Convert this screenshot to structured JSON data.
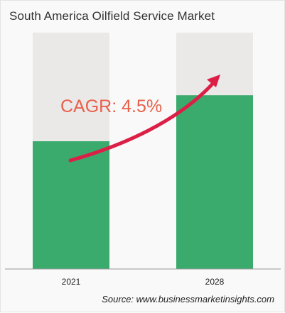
{
  "chart_data": {
    "type": "bar",
    "title": "South America Oilfield Service Market",
    "categories": [
      "2021",
      "2028"
    ],
    "values": [
      1,
      1.36
    ],
    "annotation": "CAGR: 4.5%",
    "source": "Source: www.businessmarketinsights.com",
    "colors": {
      "bar": "#3aab6d",
      "bar_background": "#ebe8e8",
      "arrow": "#dc1f47",
      "annotation": "#e8604a",
      "baseline": "#999999"
    }
  }
}
